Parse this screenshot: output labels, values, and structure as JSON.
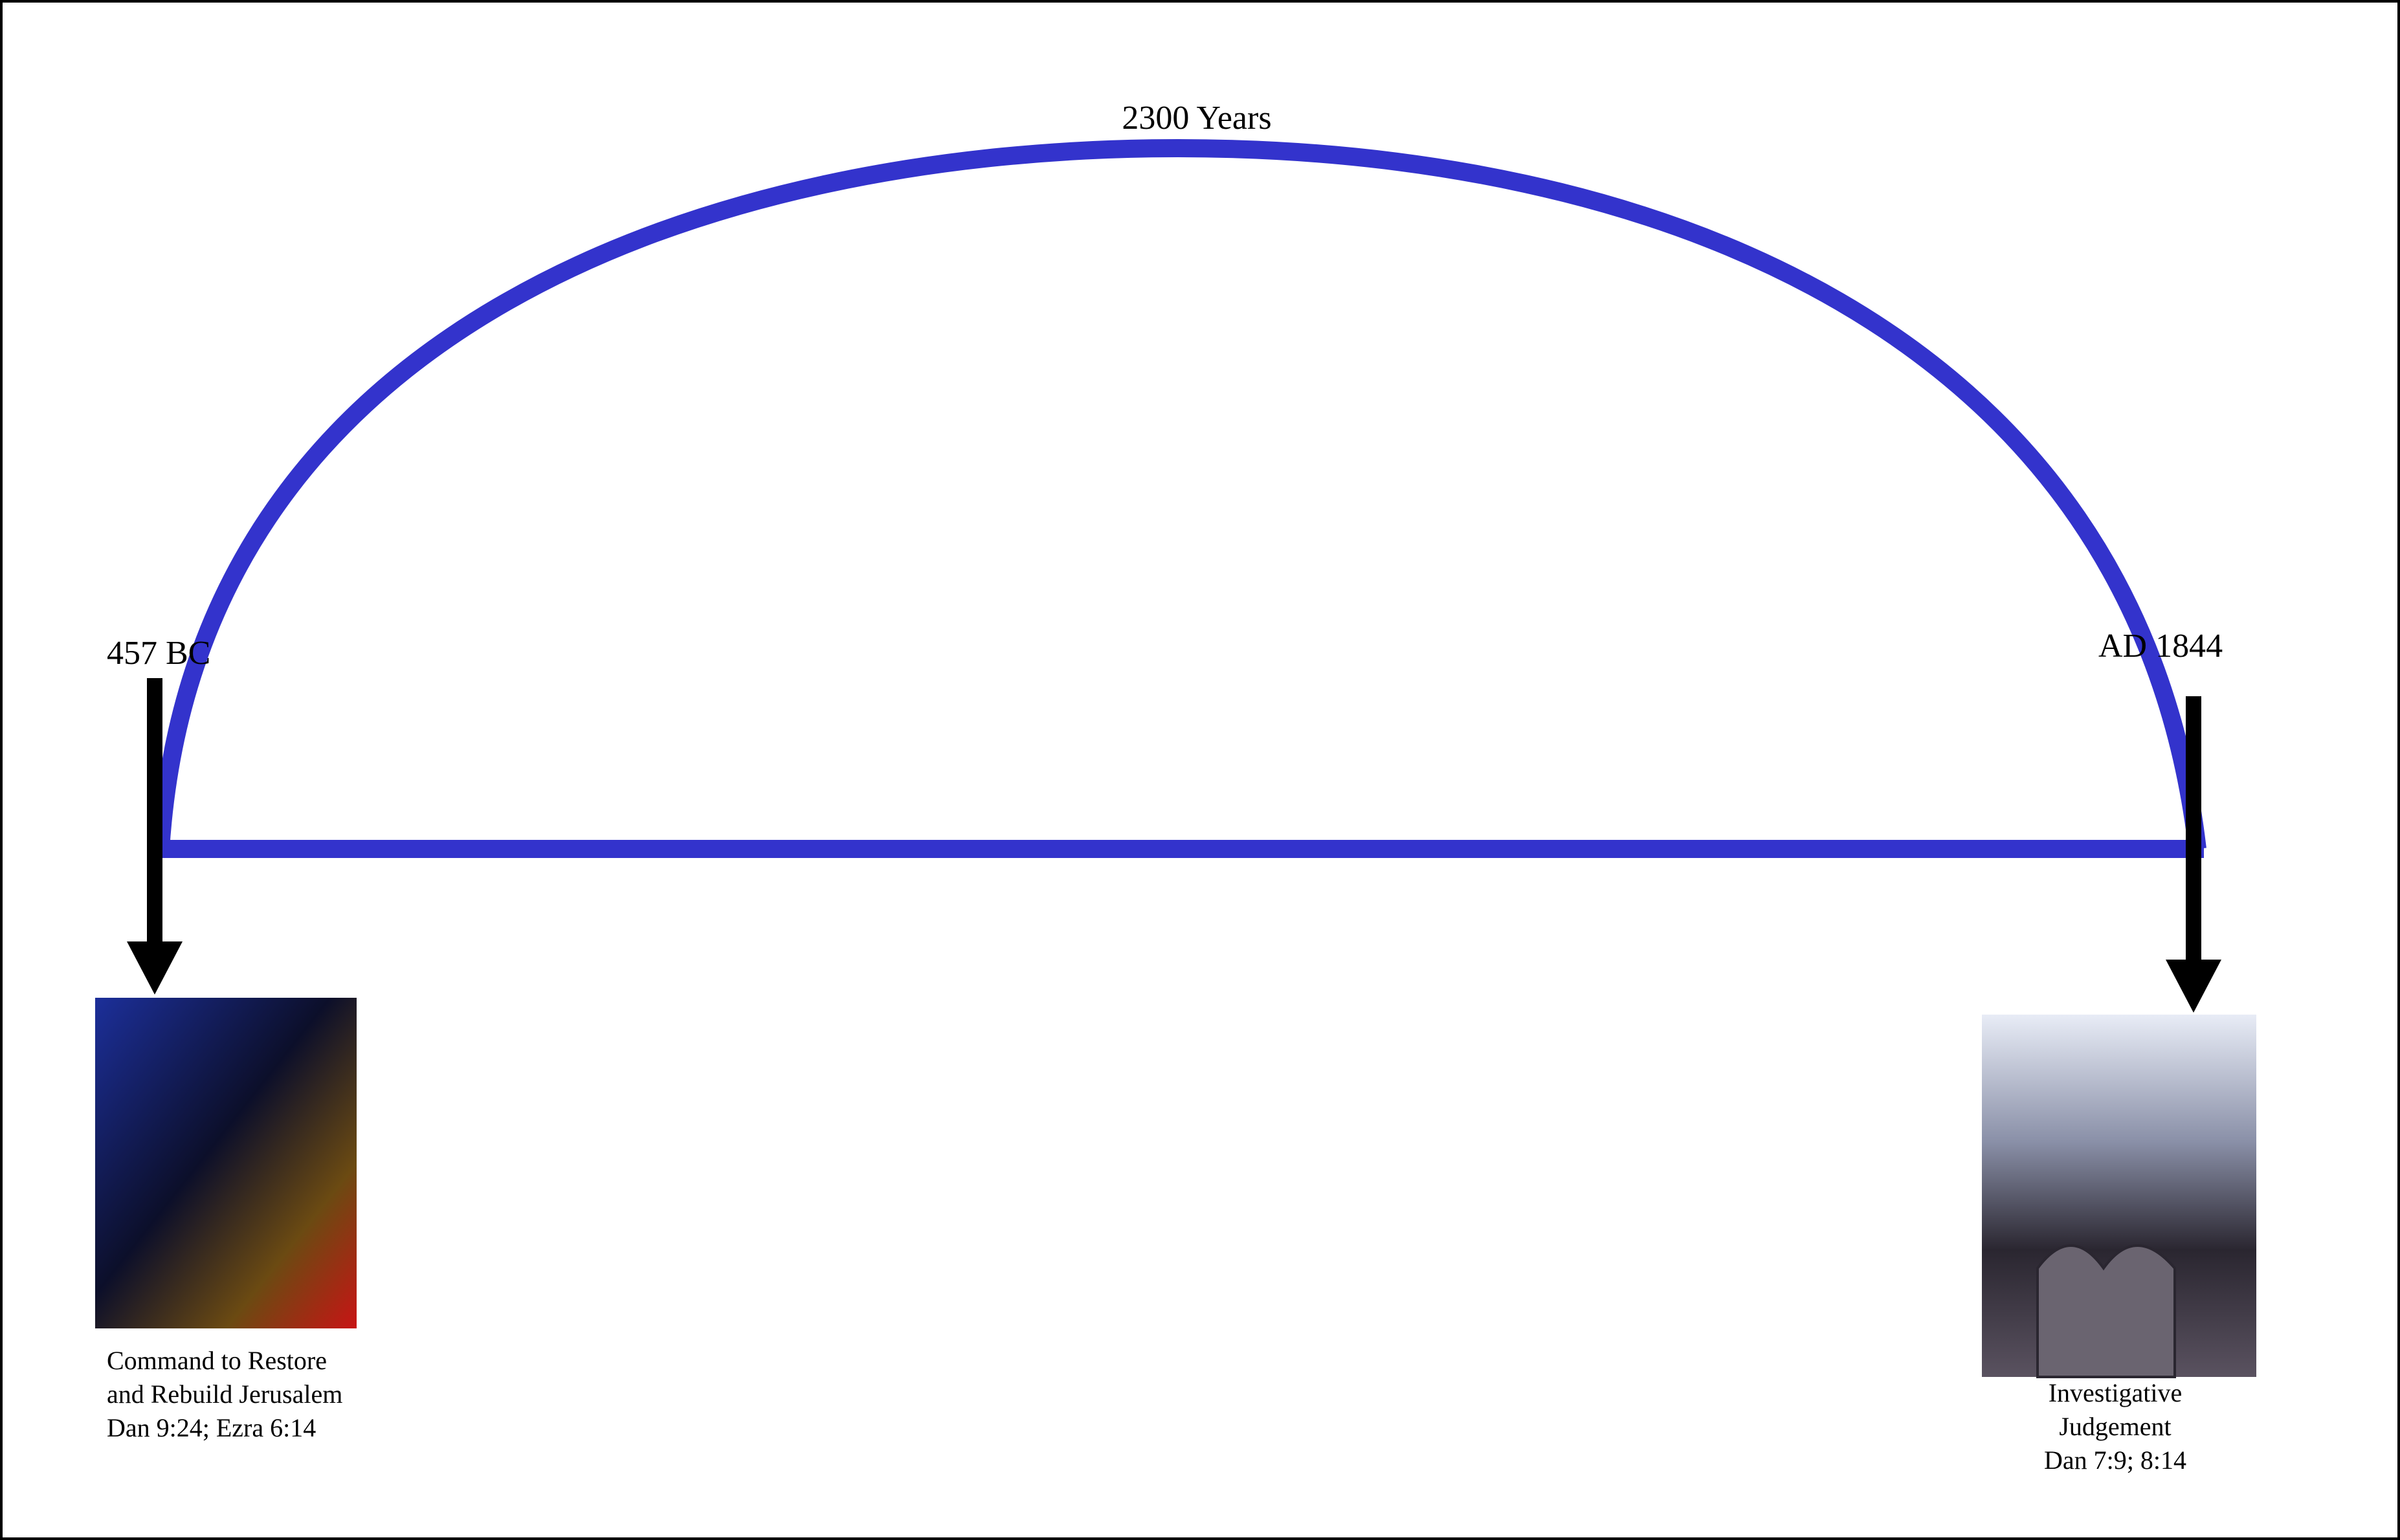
{
  "title": "2300 Years",
  "start": {
    "date": "457 BC",
    "caption": [
      "Command to Restore",
      "and Rebuild Jerusalem",
      "Dan 9:24; Ezra 6:14"
    ]
  },
  "end": {
    "date": "AD 1844",
    "caption": [
      "Investigative",
      "Judgement",
      "Dan 7:9; 8:14"
    ]
  }
}
